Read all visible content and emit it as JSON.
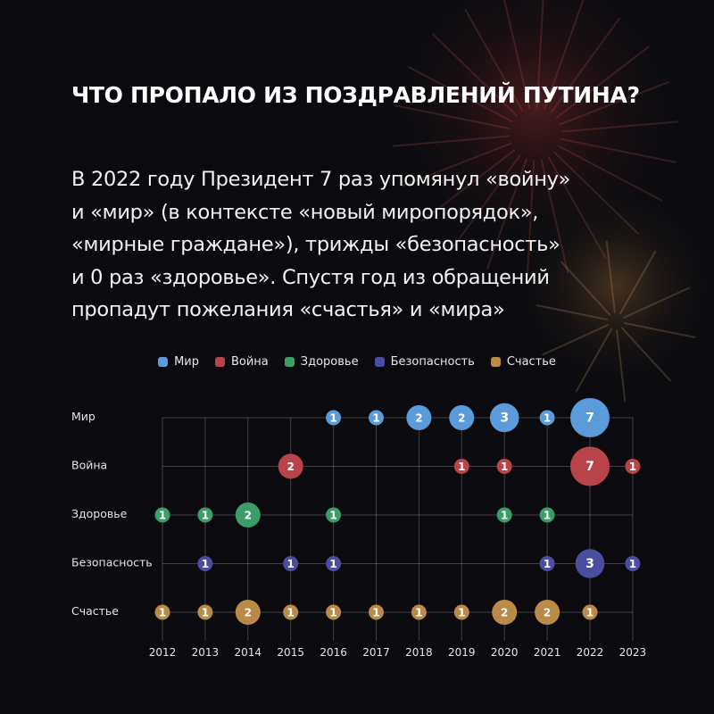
{
  "header": {
    "title": "ЧТО ПРОПАЛО ИЗ ПОЗДРАВЛЕНИЙ ПУТИНА?",
    "lines": [
      "В 2022 году Президент 7 раз упомянул «войну»",
      "и «мир» (в контексте «новый миропорядок»,",
      "«мирные граждане»), трижды «безопасность»",
      "и 0 раз «здоровье». Спустя год из обращений",
      "пропадут пожелания «счастья» и «мира»"
    ]
  },
  "chart_data": {
    "type": "scatter",
    "x": [
      2012,
      2013,
      2014,
      2015,
      2016,
      2017,
      2018,
      2019,
      2020,
      2021,
      2022,
      2023
    ],
    "series": [
      {
        "name": "Мир",
        "color": "#5b9bd9",
        "values": [
          null,
          null,
          null,
          null,
          1,
          1,
          2,
          2,
          3,
          1,
          7,
          null
        ]
      },
      {
        "name": "Война",
        "color": "#b84449",
        "values": [
          null,
          null,
          null,
          2,
          null,
          null,
          null,
          1,
          1,
          null,
          7,
          1
        ]
      },
      {
        "name": "Здоровье",
        "color": "#3a9e66",
        "values": [
          1,
          1,
          2,
          null,
          1,
          null,
          null,
          null,
          1,
          1,
          null,
          null
        ]
      },
      {
        "name": "Безопасность",
        "color": "#4b4e9e",
        "values": [
          null,
          1,
          null,
          1,
          1,
          null,
          null,
          null,
          null,
          1,
          3,
          1
        ]
      },
      {
        "name": "Счастье",
        "color": "#b98a48",
        "values": [
          1,
          1,
          2,
          1,
          1,
          1,
          1,
          1,
          2,
          2,
          1,
          null
        ]
      }
    ],
    "legend": "top-center",
    "grid": true
  }
}
